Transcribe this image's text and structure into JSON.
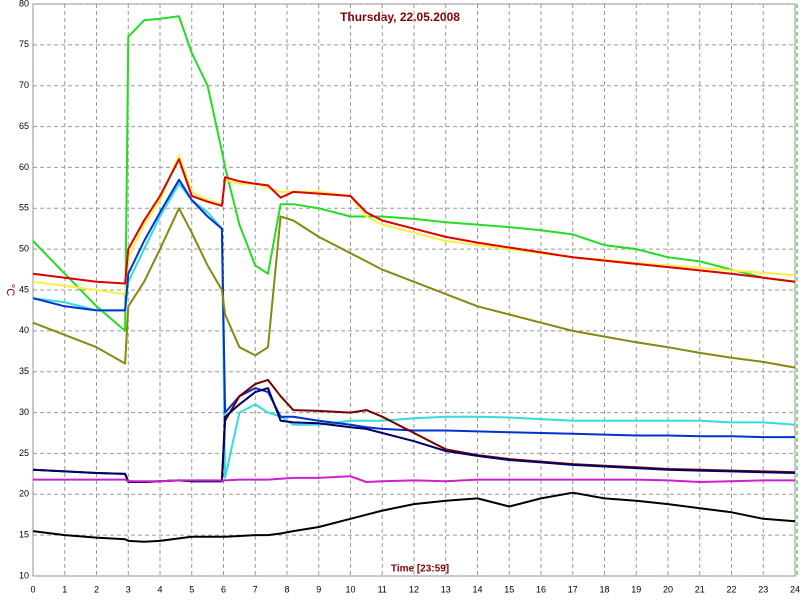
{
  "chart_data": {
    "type": "line",
    "title": "Thursday, 22.05.2008",
    "xlabel": "Time [23:59]",
    "ylabel": "°C",
    "x": [
      0,
      1,
      2,
      2.9,
      3,
      3.5,
      4,
      4.6,
      5,
      5.5,
      5.95,
      6.05,
      6.5,
      7,
      7.4,
      7.8,
      8.2,
      9,
      10,
      10.5,
      11,
      12,
      13,
      14,
      15,
      16,
      17,
      18,
      19,
      20,
      21,
      22,
      23,
      24
    ],
    "xlim": [
      0,
      24
    ],
    "xticks": [
      0,
      1,
      2,
      3,
      4,
      5,
      6,
      7,
      8,
      9,
      10,
      11,
      12,
      13,
      14,
      15,
      16,
      17,
      18,
      19,
      20,
      21,
      22,
      23,
      24
    ],
    "ylim": [
      10,
      80
    ],
    "yticks": [
      10,
      15,
      20,
      25,
      30,
      35,
      40,
      45,
      50,
      55,
      60,
      65,
      70,
      75,
      80
    ],
    "grid": true,
    "series": [
      {
        "color": "#22dd22",
        "values": [
          51,
          47,
          43,
          40,
          76,
          78,
          78.2,
          78.5,
          74,
          70,
          62,
          60,
          53,
          48,
          47,
          55.5,
          55.5,
          55,
          54,
          54,
          54,
          53.7,
          53.3,
          53,
          52.7,
          52.3,
          51.8,
          50.5,
          50,
          49,
          48.5,
          47.5,
          46.5,
          46
        ]
      },
      {
        "color": "#ffee44",
        "values": [
          46,
          45.5,
          45,
          44.5,
          49,
          53,
          56,
          61.5,
          57,
          56,
          55.5,
          58.5,
          58,
          58,
          57.5,
          57,
          57,
          57,
          56.5,
          54,
          53,
          52,
          51,
          50.5,
          50,
          49.5,
          49,
          48.7,
          48.3,
          48,
          47.7,
          47.4,
          47.1,
          46.8
        ]
      },
      {
        "color": "#dd0000",
        "values": [
          47,
          46.5,
          46,
          45.8,
          50,
          53.5,
          56.5,
          61,
          56.5,
          55.8,
          55.3,
          58.8,
          58.3,
          58,
          57.8,
          56.3,
          57,
          56.8,
          56.5,
          54.5,
          53.5,
          52.5,
          51.5,
          50.8,
          50.2,
          49.6,
          49,
          48.6,
          48.2,
          47.8,
          47.4,
          47,
          46.5,
          46
        ]
      },
      {
        "color": "#33dddd",
        "values": [
          44,
          43.5,
          42.5,
          42.5,
          46,
          50,
          54,
          58,
          56,
          54.5,
          52.5,
          22,
          30,
          31,
          30,
          29.5,
          28.5,
          28.5,
          29,
          29,
          29,
          29.3,
          29.5,
          29.5,
          29.4,
          29.2,
          29,
          29,
          29,
          29,
          29,
          28.8,
          28.8,
          28.5
        ]
      },
      {
        "color": "#0033cc",
        "values": [
          44,
          43,
          42.5,
          42.5,
          47,
          51,
          54.5,
          58.5,
          56,
          54,
          52.5,
          30,
          32,
          33,
          32.5,
          29.5,
          29.5,
          29,
          28.5,
          28.2,
          28,
          27.8,
          27.8,
          27.7,
          27.6,
          27.5,
          27.4,
          27.3,
          27.2,
          27.2,
          27.1,
          27.1,
          27,
          27
        ]
      },
      {
        "color": "#888811",
        "values": [
          41,
          39.5,
          38,
          36,
          43,
          46,
          50,
          55,
          52,
          48,
          45,
          42,
          38,
          37,
          38,
          54,
          53.5,
          51.5,
          49.5,
          48.5,
          47.5,
          46,
          44.5,
          43,
          42,
          41,
          40,
          39.3,
          38.6,
          38,
          37.3,
          36.7,
          36.2,
          35.5
        ]
      },
      {
        "color": "#770000",
        "values": [
          23,
          22.8,
          22.6,
          22.5,
          21.6,
          21.5,
          21.6,
          21.7,
          21.6,
          21.6,
          21.6,
          29,
          32,
          33.5,
          34,
          32,
          30.3,
          30.2,
          30,
          30.3,
          29.5,
          27.5,
          25.5,
          24.8,
          24.3,
          24,
          23.7,
          23.5,
          23.3,
          23.1,
          23,
          22.9,
          22.8,
          22.7
        ]
      },
      {
        "color": "#000066",
        "values": [
          23,
          22.8,
          22.6,
          22.5,
          21.5,
          21.5,
          21.6,
          21.7,
          21.6,
          21.6,
          21.6,
          29.5,
          31,
          32.5,
          33,
          29,
          28.8,
          28.7,
          28.2,
          28,
          27.5,
          26.5,
          25.3,
          24.7,
          24.2,
          23.9,
          23.6,
          23.4,
          23.2,
          23,
          22.9,
          22.8,
          22.7,
          22.6
        ]
      },
      {
        "color": "#cc22cc",
        "values": [
          21.8,
          21.8,
          21.8,
          21.8,
          21.6,
          21.6,
          21.6,
          21.7,
          21.7,
          21.7,
          21.7,
          21.7,
          21.8,
          21.8,
          21.8,
          21.9,
          22,
          22,
          22.2,
          21.5,
          21.6,
          21.7,
          21.6,
          21.8,
          21.8,
          21.8,
          21.8,
          21.8,
          21.8,
          21.7,
          21.5,
          21.6,
          21.7,
          21.7
        ]
      },
      {
        "color": "#000000",
        "values": [
          15.5,
          15,
          14.7,
          14.5,
          14.3,
          14.2,
          14.3,
          14.6,
          14.8,
          14.8,
          14.8,
          14.8,
          14.9,
          15,
          15,
          15.2,
          15.5,
          16,
          17,
          17.5,
          18,
          18.8,
          19.2,
          19.5,
          18.5,
          19.5,
          20.2,
          19.5,
          19.2,
          18.8,
          18.3,
          17.8,
          17,
          16.7
        ]
      }
    ]
  }
}
